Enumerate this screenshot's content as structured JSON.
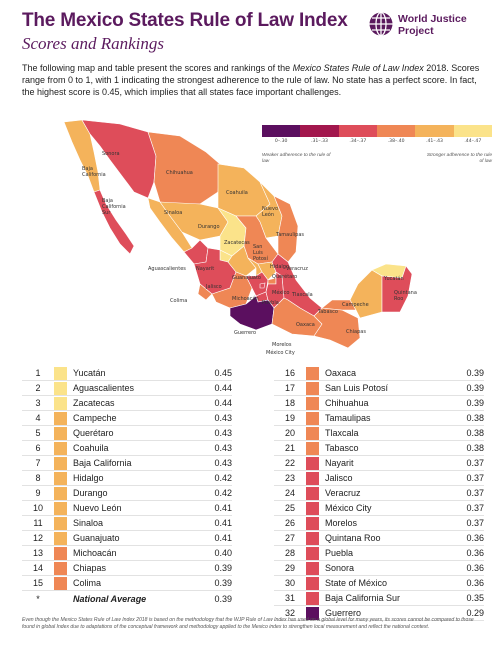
{
  "header": {
    "title": "The Mexico States Rule of Law Index",
    "subtitle": "Scores and Rankings",
    "logo_text": "World Justice\nProject"
  },
  "intro": {
    "part1": "The following map and table present the scores and rankings of the ",
    "emphasis": "Mexico States Rule of Law Index",
    "part2": " 2018. Scores range from 0 to 1, with 1 indicating the strongest adherence to the rule of law. No state has a perfect score. In fact, the highest score is 0.45, which implies that all states face important challenges."
  },
  "legend": {
    "bins": [
      {
        "label": "0–.30",
        "color": "#5b0f5f"
      },
      {
        "label": ".31–.33",
        "color": "#a2174d"
      },
      {
        "label": ".34–.37",
        "color": "#de4d5a"
      },
      {
        "label": ".38–.40",
        "color": "#ef8755"
      },
      {
        "label": ".41–.43",
        "color": "#f4b35b"
      },
      {
        "label": ".44–.47",
        "color": "#fbe38a"
      }
    ],
    "weak_label": "Weaker adherence to the rule of law",
    "strong_label": "Stronger adherence to the rule of law"
  },
  "map_labels": {
    "baja_california": "Baja\nCalifornia",
    "sonora": "Sonora",
    "chihuahua": "Chihuahua",
    "coahuila": "Coahuila",
    "nuevo_leon": "Nuevo\nLeón",
    "tamaulipas": "Tamaulipas",
    "sinaloa": "Sinaloa",
    "durango": "Durango",
    "zacatecas": "Zacatecas",
    "slp": "San\nLuis\nPotosí",
    "bcs": "Baja\nCalifornia\nSur",
    "aguascalientes": "Aguascalientes",
    "nayarit": "Nayarit",
    "jalisco": "Jalisco",
    "guanajuato": "Guanajuato",
    "queretaro": "Querétaro",
    "hidalgo": "Hidalgo",
    "michoacan": "Michoacán",
    "mexico": "México",
    "veracruz": "Veracruz",
    "tlaxcala": "Tlaxcala",
    "puebla": "Puebla",
    "colima": "Colima",
    "guerrero": "Guerrero",
    "morelos": "Morelos",
    "cdmx": "México City",
    "oaxaca": "Oaxaca",
    "tabasco": "Tabasco",
    "chiapas": "Chiapas",
    "campeche": "Campeche",
    "yucatan": "Yucatán",
    "quintana_roo": "Quintana\nRoo"
  },
  "rankings_left": [
    {
      "rank": "1",
      "state": "Yucatán",
      "score": "0.45",
      "color": "#fbe38a"
    },
    {
      "rank": "2",
      "state": "Aguascalientes",
      "score": "0.44",
      "color": "#fbe38a"
    },
    {
      "rank": "3",
      "state": "Zacatecas",
      "score": "0.44",
      "color": "#fbe38a"
    },
    {
      "rank": "4",
      "state": "Campeche",
      "score": "0.43",
      "color": "#f4b35b"
    },
    {
      "rank": "5",
      "state": "Querétaro",
      "score": "0.43",
      "color": "#f4b35b"
    },
    {
      "rank": "6",
      "state": "Coahuila",
      "score": "0.43",
      "color": "#f4b35b"
    },
    {
      "rank": "7",
      "state": "Baja California",
      "score": "0.43",
      "color": "#f4b35b"
    },
    {
      "rank": "8",
      "state": "Hidalgo",
      "score": "0.42",
      "color": "#f4b35b"
    },
    {
      "rank": "9",
      "state": "Durango",
      "score": "0.42",
      "color": "#f4b35b"
    },
    {
      "rank": "10",
      "state": "Nuevo León",
      "score": "0.41",
      "color": "#f4b35b"
    },
    {
      "rank": "11",
      "state": "Sinaloa",
      "score": "0.41",
      "color": "#f4b35b"
    },
    {
      "rank": "12",
      "state": "Guanajuato",
      "score": "0.41",
      "color": "#f4b35b"
    },
    {
      "rank": "13",
      "state": "Michoacán",
      "score": "0.40",
      "color": "#ef8755"
    },
    {
      "rank": "14",
      "state": "Chiapas",
      "score": "0.39",
      "color": "#ef8755"
    },
    {
      "rank": "15",
      "state": "Colima",
      "score": "0.39",
      "color": "#ef8755"
    },
    {
      "rank": "*",
      "state": "National Average",
      "score": "0.39",
      "color": "",
      "avg": true
    }
  ],
  "rankings_right": [
    {
      "rank": "16",
      "state": "Oaxaca",
      "score": "0.39",
      "color": "#ef8755"
    },
    {
      "rank": "17",
      "state": "San Luis Potosí",
      "score": "0.39",
      "color": "#ef8755"
    },
    {
      "rank": "18",
      "state": "Chihuahua",
      "score": "0.39",
      "color": "#ef8755"
    },
    {
      "rank": "19",
      "state": "Tamaulipas",
      "score": "0.38",
      "color": "#ef8755"
    },
    {
      "rank": "20",
      "state": "Tlaxcala",
      "score": "0.38",
      "color": "#ef8755"
    },
    {
      "rank": "21",
      "state": "Tabasco",
      "score": "0.38",
      "color": "#ef8755"
    },
    {
      "rank": "22",
      "state": "Nayarit",
      "score": "0.37",
      "color": "#de4d5a"
    },
    {
      "rank": "23",
      "state": "Jalisco",
      "score": "0.37",
      "color": "#de4d5a"
    },
    {
      "rank": "24",
      "state": "Veracruz",
      "score": "0.37",
      "color": "#de4d5a"
    },
    {
      "rank": "25",
      "state": "México City",
      "score": "0.37",
      "color": "#de4d5a"
    },
    {
      "rank": "26",
      "state": "Morelos",
      "score": "0.37",
      "color": "#de4d5a"
    },
    {
      "rank": "27",
      "state": "Quintana Roo",
      "score": "0.36",
      "color": "#de4d5a"
    },
    {
      "rank": "28",
      "state": "Puebla",
      "score": "0.36",
      "color": "#de4d5a"
    },
    {
      "rank": "29",
      "state": "Sonora",
      "score": "0.36",
      "color": "#de4d5a"
    },
    {
      "rank": "30",
      "state": "State of México",
      "score": "0.36",
      "color": "#de4d5a"
    },
    {
      "rank": "31",
      "state": "Baja California Sur",
      "score": "0.35",
      "color": "#de4d5a"
    },
    {
      "rank": "32",
      "state": "Guerrero",
      "score": "0.29",
      "color": "#5b0f5f"
    }
  ],
  "footnote": "Even though the Mexico States Rule of Law Index 2018 is based on the methodology that the WJP Rule of Law Index has used on a global level for many years, its scores cannot be compared to those found in global Index due to adaptations of the conceptual framework and methodology applied to the Mexico index to strengthen local measurement and reflect the national context."
}
